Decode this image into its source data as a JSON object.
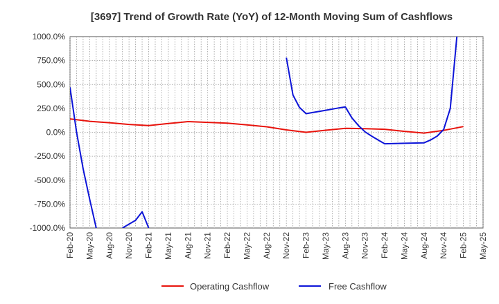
{
  "chart_data": {
    "type": "line",
    "title": "[3697]  Trend of Growth Rate (YoY) of 12-Month Moving Sum of Cashflows",
    "xlabel": "",
    "ylabel": "",
    "ylim": [
      -1000,
      1000
    ],
    "y_ticks": [
      "1000.0%",
      "750.0%",
      "500.0%",
      "250.0%",
      "0.0%",
      "-250.0%",
      "-500.0%",
      "-750.0%",
      "-1000.0%"
    ],
    "x_ticks": [
      "Feb-20",
      "May-20",
      "Aug-20",
      "Nov-20",
      "Feb-21",
      "May-21",
      "Aug-21",
      "Nov-21",
      "Feb-22",
      "May-22",
      "Aug-22",
      "Nov-22",
      "Feb-23",
      "May-23",
      "Aug-23",
      "Nov-23",
      "Feb-24",
      "May-24",
      "Aug-24",
      "Nov-24",
      "Feb-25",
      "May-25"
    ],
    "grid": true,
    "legend_position": "bottom",
    "series": [
      {
        "name": "Operating Cashflow",
        "color": "#e8130c",
        "points": [
          [
            "Feb-20",
            140
          ],
          [
            "May-20",
            115
          ],
          [
            "Aug-20",
            100
          ],
          [
            "Nov-20",
            82
          ],
          [
            "Feb-21",
            70
          ],
          [
            "May-21",
            92
          ],
          [
            "Aug-21",
            112
          ],
          [
            "Nov-21",
            104
          ],
          [
            "Feb-22",
            96
          ],
          [
            "May-22",
            78
          ],
          [
            "Aug-22",
            58
          ],
          [
            "Nov-22",
            25
          ],
          [
            "Feb-23",
            0
          ],
          [
            "May-23",
            22
          ],
          [
            "Aug-23",
            42
          ],
          [
            "Nov-23",
            38
          ],
          [
            "Feb-24",
            32
          ],
          [
            "May-24",
            10
          ],
          [
            "Aug-24",
            -8
          ],
          [
            "Nov-24",
            20
          ],
          [
            "Feb-25",
            60
          ]
        ]
      },
      {
        "name": "Free Cashflow",
        "color": "#0c14d8",
        "segments": [
          [
            [
              "Feb-20",
              470
            ],
            [
              "Mar-20",
              0
            ],
            [
              "Apr-20",
              -380
            ],
            [
              "May-20",
              -700
            ],
            [
              "Jun-20",
              -1000
            ]
          ],
          [
            [
              "Oct-20",
              -1000
            ],
            [
              "Dec-20",
              -920
            ],
            [
              "Jan-21",
              -830
            ],
            [
              "Feb-21",
              -1000
            ]
          ],
          [
            [
              "Nov-22",
              780
            ],
            [
              "Dec-22",
              390
            ],
            [
              "Jan-23",
              260
            ],
            [
              "Feb-23",
              195
            ],
            [
              "May-23",
              230
            ],
            [
              "Jul-23",
              255
            ],
            [
              "Aug-23",
              265
            ],
            [
              "Sep-23",
              150
            ],
            [
              "Oct-23",
              70
            ],
            [
              "Nov-23",
              5
            ],
            [
              "Dec-23",
              -40
            ],
            [
              "Jan-24",
              -80
            ],
            [
              "Feb-24",
              -120
            ],
            [
              "May-24",
              -115
            ],
            [
              "Aug-24",
              -110
            ],
            [
              "Sep-24",
              -80
            ],
            [
              "Oct-24",
              -40
            ],
            [
              "Nov-24",
              30
            ],
            [
              "Dec-24",
              250
            ],
            [
              "Jan-25",
              1000
            ]
          ]
        ]
      }
    ]
  }
}
